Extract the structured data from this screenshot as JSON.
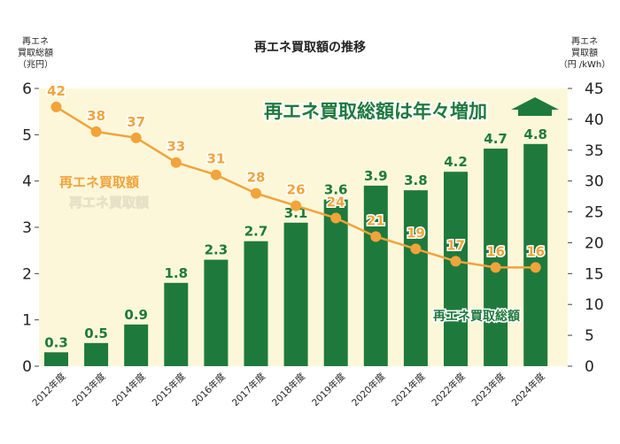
{
  "colors": {
    "plot_bg": "#fdf7da",
    "bar": "#1e7a3c",
    "bar_label": "#1e7a3c",
    "line": "#f2a33a",
    "line_label": "#f2a33a",
    "banner_text": "#1e7a3c",
    "banner_outline": "#ffffff"
  },
  "chart_data": {
    "type": "bar",
    "title": "再エネ買取額の推移",
    "categories": [
      "2012年度",
      "2013年度",
      "2014年度",
      "2015年度",
      "2016年度",
      "2017年度",
      "2018年度",
      "2019年度",
      "2020年度",
      "2021年度",
      "2022年度",
      "2023年度",
      "2024年度"
    ],
    "y_left": {
      "label_lines": [
        "再エネ",
        "買取総額",
        "（兆円）"
      ],
      "ylim": [
        0,
        6
      ],
      "ticks": [
        "0",
        "1",
        "2",
        "3",
        "4",
        "5",
        "6"
      ]
    },
    "y_right": {
      "label_lines": [
        "再エネ",
        "買取額",
        "（円 /kWh）"
      ],
      "ylim": [
        0,
        45
      ],
      "ticks": [
        "0",
        "5",
        "10",
        "15",
        "20",
        "25",
        "30",
        "35",
        "40",
        "45"
      ]
    },
    "series": [
      {
        "name": "再エネ買取総額",
        "kind": "bar",
        "axis": "left",
        "values": [
          0.3,
          0.5,
          0.9,
          1.8,
          2.3,
          2.7,
          3.1,
          3.6,
          3.9,
          3.8,
          4.2,
          4.7,
          4.8
        ],
        "labels": [
          "0.3",
          "0.5",
          "0.9",
          "1.8",
          "2.3",
          "2.7",
          "3.1",
          "3.6",
          "3.9",
          "3.8",
          "4.2",
          "4.7",
          "4.8"
        ]
      },
      {
        "name": "再エネ買取額",
        "kind": "line",
        "axis": "right",
        "values": [
          42,
          38,
          37,
          33,
          31,
          28,
          26,
          24,
          21,
          19,
          17,
          16,
          16
        ],
        "labels": [
          "42",
          "38",
          "37",
          "33",
          "31",
          "28",
          "26",
          "24",
          "21",
          "19",
          "17",
          "16",
          "16"
        ]
      }
    ],
    "annotations": {
      "headline": "再エネ買取総額は年々増加",
      "line_label": "再エネ買取額",
      "line_label_ghost": "再エネ買取額",
      "bar_label": "再エネ買取総額"
    },
    "grid": false
  }
}
